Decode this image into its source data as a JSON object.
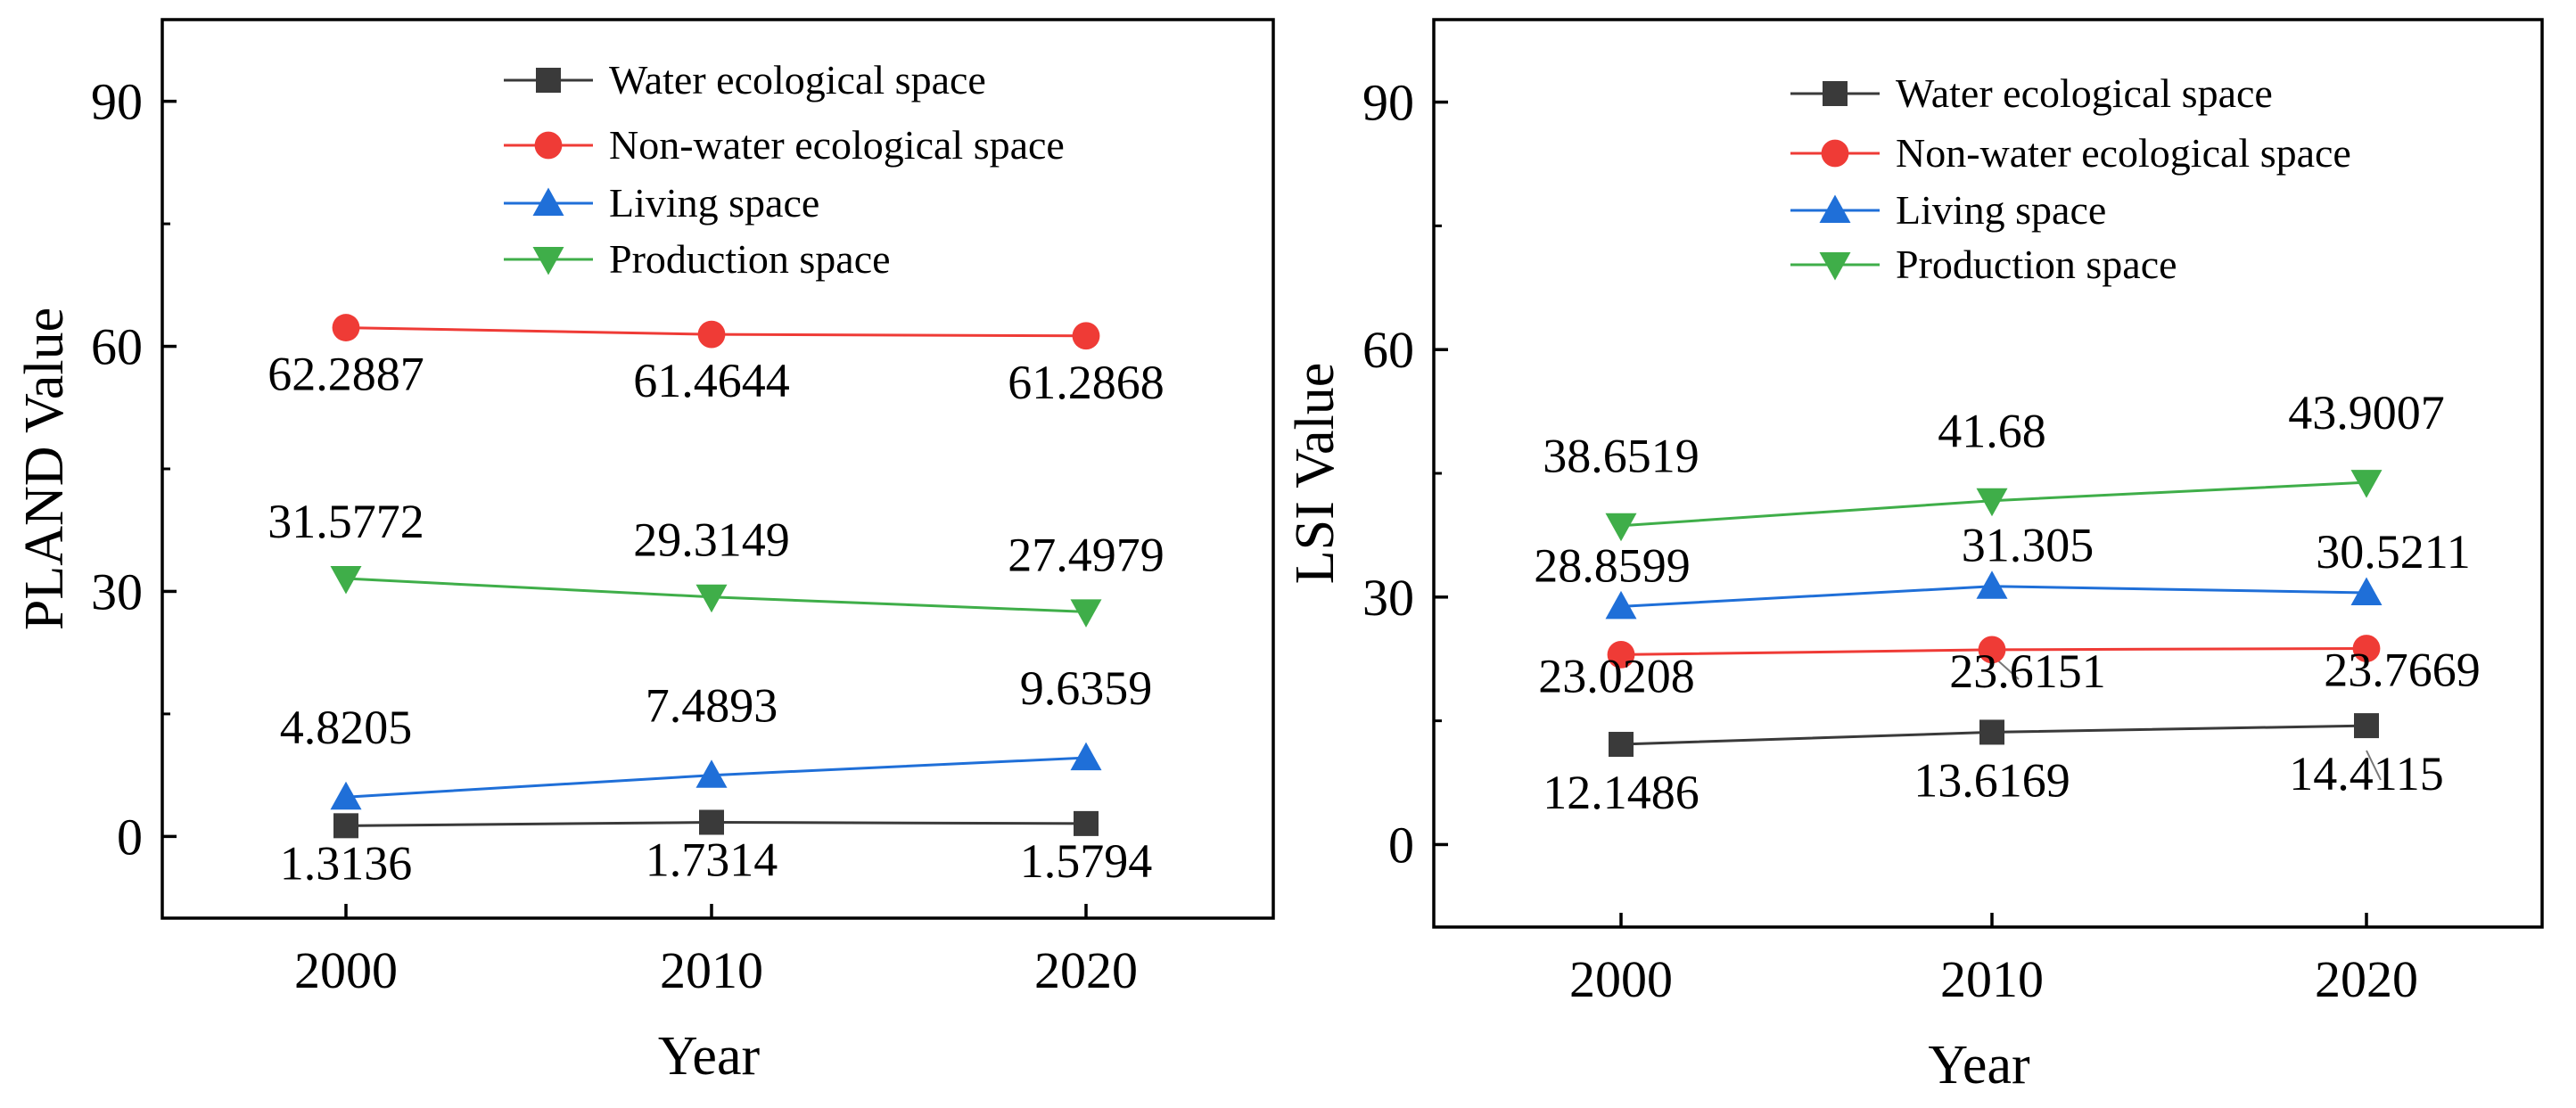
{
  "figure": {
    "series_colors": {
      "water": "#3a3a3a",
      "nonwater": "#ef3b36",
      "living": "#1f6fd8",
      "production": "#3fae49"
    },
    "series_markers": {
      "water": "square",
      "nonwater": "circle",
      "living": "triangle-up",
      "production": "triangle-down"
    }
  },
  "chart_data": [
    {
      "type": "line",
      "id": "pland",
      "title": "",
      "xlabel": "Year",
      "ylabel": "PLAND  Value",
      "x": [
        "2000",
        "2010",
        "2020"
      ],
      "ylim": [
        -10,
        100
      ],
      "yticks": [
        "0",
        "30",
        "60",
        "90"
      ],
      "legend": "top-right",
      "grid": false,
      "series": [
        {
          "key": "water",
          "name": "Water ecological space",
          "values": [
            1.3136,
            1.7314,
            1.5794
          ],
          "labels": [
            "1.3136",
            "1.7314",
            "1.5794"
          ]
        },
        {
          "key": "nonwater",
          "name": "Non-water ecological space",
          "values": [
            62.2887,
            61.4644,
            61.2868
          ],
          "labels": [
            "62.2887",
            "61.4644",
            "61.2868"
          ]
        },
        {
          "key": "living",
          "name": "Living space",
          "values": [
            4.8205,
            7.4893,
            9.6359
          ],
          "labels": [
            "4.8205",
            "7.4893",
            "9.6359"
          ]
        },
        {
          "key": "production",
          "name": "Production space",
          "values": [
            31.5772,
            29.3149,
            27.4979
          ],
          "labels": [
            "31.5772",
            "29.3149",
            "27.4979"
          ]
        }
      ]
    },
    {
      "type": "line",
      "id": "lsi",
      "title": "",
      "xlabel": "Year",
      "ylabel": "LSI  Value",
      "x": [
        "2000",
        "2010",
        "2020"
      ],
      "ylim": [
        -10,
        100
      ],
      "yticks": [
        "0",
        "30",
        "60",
        "90"
      ],
      "legend": "top-right",
      "grid": false,
      "series": [
        {
          "key": "water",
          "name": "Water ecological space",
          "values": [
            12.1486,
            13.6169,
            14.4115
          ],
          "labels": [
            "12.1486",
            "13.6169",
            "14.4115"
          ]
        },
        {
          "key": "nonwater",
          "name": "Non-water ecological space",
          "values": [
            23.0208,
            23.6151,
            23.7669
          ],
          "labels": [
            "23.0208",
            "23.6151",
            "23.7669"
          ]
        },
        {
          "key": "living",
          "name": "Living space",
          "values": [
            28.8599,
            31.305,
            30.5211
          ],
          "labels": [
            "28.8599",
            "31.305",
            "30.5211"
          ]
        },
        {
          "key": "production",
          "name": "Production space",
          "values": [
            38.6519,
            41.68,
            43.9007
          ],
          "labels": [
            "38.6519",
            "41.68",
            "43.9007"
          ]
        }
      ]
    }
  ]
}
